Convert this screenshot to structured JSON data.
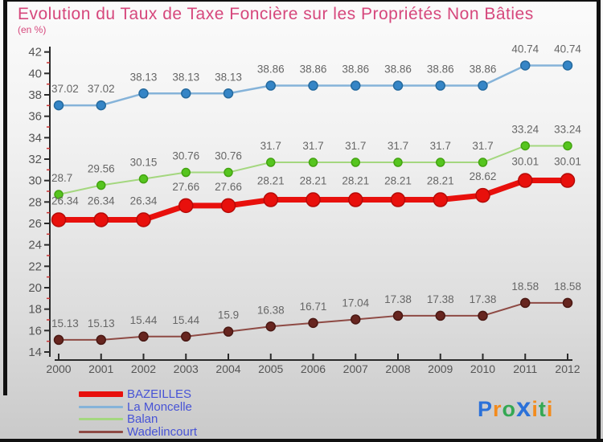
{
  "title": "Evolution du Taux de Taxe Foncière sur les Propriétés Non Bâties",
  "subtitle": "(en %)",
  "chart_data": {
    "type": "line",
    "x": [
      2000,
      2001,
      2002,
      2003,
      2004,
      2005,
      2006,
      2007,
      2008,
      2009,
      2010,
      2011,
      2012
    ],
    "series": [
      {
        "name": "La Moncelle",
        "values": [
          37.02,
          37.02,
          38.13,
          38.13,
          38.13,
          38.86,
          38.86,
          38.86,
          38.86,
          38.86,
          38.86,
          40.74,
          40.74
        ],
        "line_color": "#85b3d9",
        "line_width": 2.5,
        "marker_fill": "#3585c6",
        "marker_stroke": "#256a9e",
        "marker_radius": 5.5,
        "label_dy": -16
      },
      {
        "name": "Balan",
        "values": [
          28.7,
          29.56,
          30.15,
          30.76,
          30.76,
          31.7,
          31.7,
          31.7,
          31.7,
          31.7,
          31.7,
          33.24,
          33.24
        ],
        "line_color": "#a4d77f",
        "line_width": 2,
        "marker_fill": "#56c51f",
        "marker_stroke": "#43a311",
        "marker_radius": 5,
        "label_dy": -16
      },
      {
        "name": "BAZEILLES",
        "values": [
          26.34,
          26.34,
          26.34,
          27.66,
          27.66,
          28.21,
          28.21,
          28.21,
          28.21,
          28.21,
          28.62,
          30.01,
          30.01
        ],
        "line_color": "#e8100c",
        "line_width": 7,
        "marker_fill": "#e8100c",
        "marker_stroke": "#b50b08",
        "marker_radius": 8.5,
        "label_dy": -19
      },
      {
        "name": "Wadelincourt",
        "values": [
          15.13,
          15.13,
          15.44,
          15.44,
          15.9,
          16.38,
          16.71,
          17.04,
          17.38,
          17.38,
          17.38,
          18.58,
          18.58
        ],
        "line_color": "#8e4a44",
        "line_width": 2,
        "marker_fill": "#67251f",
        "marker_stroke": "#4a1813",
        "marker_radius": 5.5,
        "label_dy": -16
      }
    ],
    "ylim": [
      14,
      42
    ],
    "ytick_step": 2,
    "grid": false,
    "legend_position": "bottom-left",
    "label_color": "#666666",
    "axis_color": "#2a2a2a",
    "tick_label_color": "#555555",
    "minor_tick_color": "#cc3333"
  },
  "legend": {
    "order": [
      "BAZEILLES",
      "La Moncelle",
      "Balan",
      "Wadelincourt"
    ],
    "swatch_heights": {
      "BAZEILLES": 7,
      "La Moncelle": 3,
      "Balan": 3,
      "Wadelincourt": 3
    },
    "text_color": "#4753d6"
  },
  "logo": {
    "name": "Proxiti",
    "letters": [
      {
        "ch": "P",
        "color": "#2b71d9"
      },
      {
        "ch": "r",
        "color": "#f38b1c"
      },
      {
        "ch": "o",
        "color": "#34a853"
      },
      {
        "ch": "x",
        "color": "#2b71d9",
        "big": true
      },
      {
        "ch": "i",
        "color": "#f38b1c"
      },
      {
        "ch": "t",
        "color": "#34a853"
      },
      {
        "ch": "i",
        "color": "#f38b1c"
      }
    ]
  }
}
